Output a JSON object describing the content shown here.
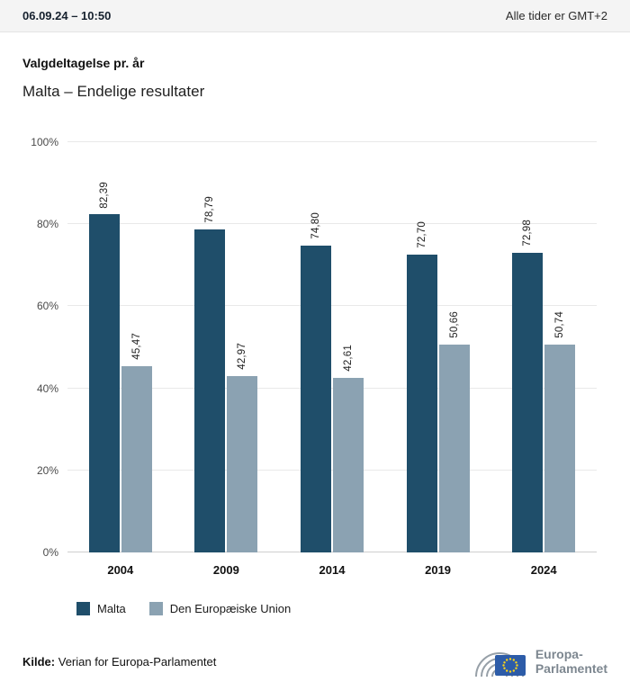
{
  "header": {
    "datetime": "06.09.24 – 10:50",
    "timezone_note": "Alle tider er GMT+2"
  },
  "title": "Valgdeltagelse pr. år",
  "subtitle": "Malta – Endelige resultater",
  "chart_data": {
    "type": "bar",
    "categories": [
      "2004",
      "2009",
      "2014",
      "2019",
      "2024"
    ],
    "series": [
      {
        "name": "Malta",
        "color": "#1f4e6a",
        "values": [
          82.39,
          78.79,
          74.8,
          72.7,
          72.98
        ],
        "labels": [
          "82,39",
          "78,79",
          "74,80",
          "72,70",
          "72,98"
        ]
      },
      {
        "name": "Den Europæiske Union",
        "color": "#8ba2b2",
        "values": [
          45.47,
          42.97,
          42.61,
          50.66,
          50.74
        ],
        "labels": [
          "45,47",
          "42,97",
          "42,61",
          "50,66",
          "50,74"
        ]
      }
    ],
    "ylim": [
      0,
      100
    ],
    "yticks": [
      "0%",
      "20%",
      "40%",
      "60%",
      "80%",
      "100%"
    ],
    "grid": true,
    "legend_position": "bottom",
    "xlabel": "",
    "ylabel": ""
  },
  "legend": {
    "items": [
      {
        "label": "Malta",
        "color": "#1f4e6a"
      },
      {
        "label": "Den Europæiske Union",
        "color": "#8ba2b2"
      }
    ]
  },
  "footer": {
    "source_label": "Kilde:",
    "source_text": " Verian for Europa-Parlamentet"
  },
  "logo": {
    "line1": "Europa-",
    "line2": "Parlamentet",
    "flag_color": "#2d5ca8",
    "star_color": "#ffd617",
    "arc_color": "#97a0a8"
  }
}
